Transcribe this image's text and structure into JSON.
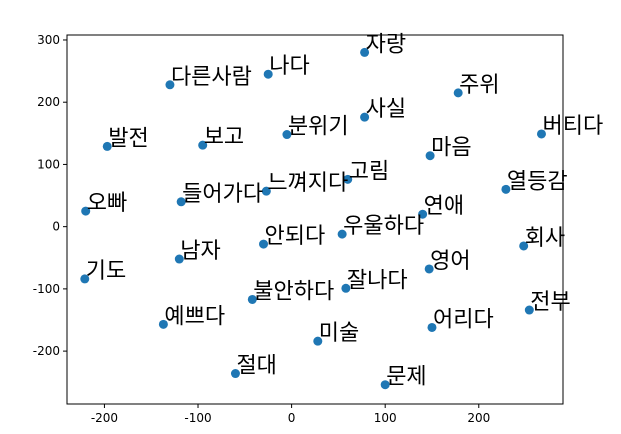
{
  "chart_data": {
    "type": "scatter",
    "title": "",
    "xlabel": "",
    "ylabel": "",
    "xlim": [
      -240,
      290
    ],
    "ylim": [
      -285,
      308
    ],
    "xticks": [
      -200,
      -100,
      0,
      100,
      200
    ],
    "yticks": [
      -200,
      -100,
      0,
      100,
      200,
      300
    ],
    "grid": false,
    "colors": {
      "marker": "#1f77b4",
      "axes": "#000000"
    },
    "points": [
      {
        "label": "자랑",
        "x": 78,
        "y": 280
      },
      {
        "label": "다른사람",
        "x": -130,
        "y": 228
      },
      {
        "label": "나다",
        "x": -25,
        "y": 245
      },
      {
        "label": "주위",
        "x": 178,
        "y": 215
      },
      {
        "label": "사실",
        "x": 78,
        "y": 176
      },
      {
        "label": "분위기",
        "x": -5,
        "y": 148
      },
      {
        "label": "버티다",
        "x": 267,
        "y": 149
      },
      {
        "label": "발전",
        "x": -197,
        "y": 129
      },
      {
        "label": "보고",
        "x": -95,
        "y": 131
      },
      {
        "label": "마음",
        "x": 148,
        "y": 114
      },
      {
        "label": "고림",
        "x": 60,
        "y": 76
      },
      {
        "label": "열등감",
        "x": 229,
        "y": 60
      },
      {
        "label": "느껴지다",
        "x": -27,
        "y": 57
      },
      {
        "label": "들어가다",
        "x": -118,
        "y": 40
      },
      {
        "label": "오빠",
        "x": -220,
        "y": 25
      },
      {
        "label": "연애",
        "x": 140,
        "y": 20
      },
      {
        "label": "우울하다",
        "x": 54,
        "y": -12
      },
      {
        "label": "안되다",
        "x": -30,
        "y": -28
      },
      {
        "label": "회사",
        "x": 248,
        "y": -31
      },
      {
        "label": "남자",
        "x": -120,
        "y": -52
      },
      {
        "label": "영어",
        "x": 147,
        "y": -68
      },
      {
        "label": "기도",
        "x": -221,
        "y": -84
      },
      {
        "label": "잘나다",
        "x": 58,
        "y": -99
      },
      {
        "label": "불안하다",
        "x": -42,
        "y": -117
      },
      {
        "label": "전부",
        "x": 254,
        "y": -134
      },
      {
        "label": "예쁘다",
        "x": -137,
        "y": -157
      },
      {
        "label": "어리다",
        "x": 150,
        "y": -162
      },
      {
        "label": "미술",
        "x": 28,
        "y": -184
      },
      {
        "label": "절대",
        "x": -60,
        "y": -236
      },
      {
        "label": "문제",
        "x": 100,
        "y": -254
      }
    ]
  }
}
